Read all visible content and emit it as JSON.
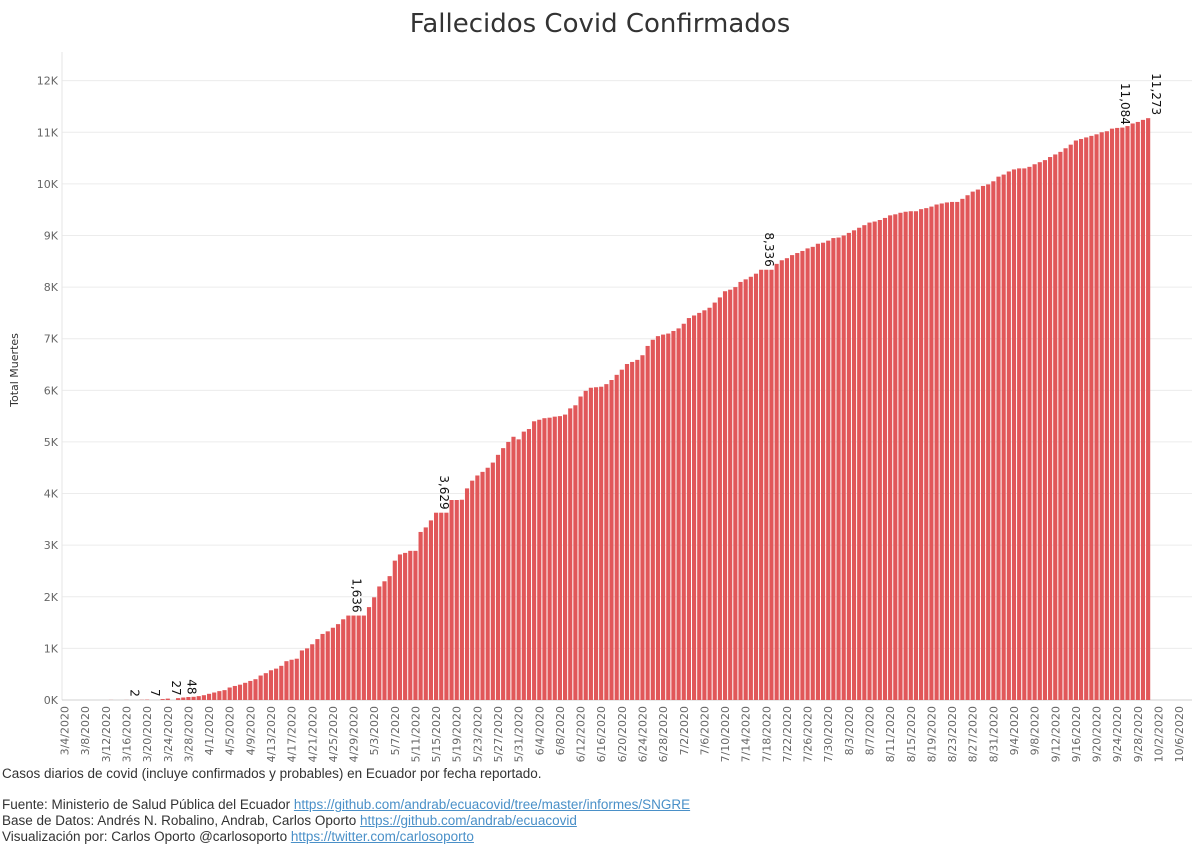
{
  "chart_data": {
    "type": "bar",
    "title": "Fallecidos Covid Confirmados",
    "xlabel": "",
    "ylabel": "Total Muertes",
    "ylim": [
      0,
      12400
    ],
    "y_ticks": [
      0,
      1000,
      2000,
      3000,
      4000,
      5000,
      6000,
      7000,
      8000,
      9000,
      10000,
      11000,
      12000
    ],
    "y_tick_labels": [
      "0K",
      "1K",
      "2K",
      "3K",
      "4K",
      "5K",
      "6K",
      "7K",
      "8K",
      "9K",
      "10K",
      "11K",
      "12K"
    ],
    "x_axis": {
      "type": "date",
      "start": "3/4/2020",
      "end": "10/8/2020",
      "tick_every_days": 4
    },
    "x_tick_labels": [
      "3/4/2020",
      "3/8/2020",
      "3/12/2020",
      "3/16/2020",
      "3/20/2020",
      "3/24/2020",
      "3/28/2020",
      "4/1/2020",
      "4/5/2020",
      "4/9/2020",
      "4/13/2020",
      "4/17/2020",
      "4/21/2020",
      "4/25/2020",
      "4/29/2020",
      "5/3/2020",
      "5/7/2020",
      "5/11/2020",
      "5/15/2020",
      "5/19/2020",
      "5/23/2020",
      "5/27/2020",
      "5/31/2020",
      "6/4/2020",
      "6/8/2020",
      "6/12/2020",
      "6/16/2020",
      "6/20/2020",
      "6/24/2020",
      "6/28/2020",
      "7/2/2020",
      "7/6/2020",
      "7/10/2020",
      "7/14/2020",
      "7/18/2020",
      "7/22/2020",
      "7/26/2020",
      "7/30/2020",
      "8/3/2020",
      "8/7/2020",
      "8/11/2020",
      "8/15/2020",
      "8/19/2020",
      "8/23/2020",
      "8/27/2020",
      "8/31/2020",
      "9/4/2020",
      "9/8/2020",
      "9/12/2020",
      "9/16/2020",
      "9/20/2020",
      "9/24/2020",
      "9/28/2020",
      "10/2/2020",
      "10/6/2020"
    ],
    "bar_color": "#e15759",
    "series": [
      {
        "points": [
          [
            "3/13/2020",
            2
          ],
          [
            "3/16/2020",
            2
          ],
          [
            "3/19/2020",
            4
          ],
          [
            "3/20/2020",
            7
          ],
          [
            "3/23/2020",
            18
          ],
          [
            "3/24/2020",
            27
          ],
          [
            "3/26/2020",
            36
          ],
          [
            "3/27/2020",
            48
          ],
          [
            "3/28/2020",
            58
          ],
          [
            "3/29/2020",
            62
          ],
          [
            "3/30/2020",
            75
          ],
          [
            "3/31/2020",
            93
          ],
          [
            "4/1/2020",
            120
          ],
          [
            "4/2/2020",
            145
          ],
          [
            "4/3/2020",
            172
          ],
          [
            "4/4/2020",
            191
          ],
          [
            "4/5/2020",
            242
          ],
          [
            "4/6/2020",
            272
          ],
          [
            "4/7/2020",
            297
          ],
          [
            "4/8/2020",
            333
          ],
          [
            "4/9/2020",
            369
          ],
          [
            "4/10/2020",
            403
          ],
          [
            "4/11/2020",
            474
          ],
          [
            "4/12/2020",
            520
          ],
          [
            "4/13/2020",
            576
          ],
          [
            "4/14/2020",
            608
          ],
          [
            "4/15/2020",
            662
          ],
          [
            "4/16/2020",
            752
          ],
          [
            "4/17/2020",
            780
          ],
          [
            "4/18/2020",
            800
          ],
          [
            "4/19/2020",
            960
          ],
          [
            "4/20/2020",
            1000
          ],
          [
            "4/21/2020",
            1080
          ],
          [
            "4/22/2020",
            1180
          ],
          [
            "4/23/2020",
            1280
          ],
          [
            "4/24/2020",
            1330
          ],
          [
            "4/25/2020",
            1400
          ],
          [
            "4/26/2020",
            1470
          ],
          [
            "4/27/2020",
            1564
          ],
          [
            "4/28/2020",
            1636
          ],
          [
            "4/29/2020",
            1636
          ],
          [
            "4/30/2020",
            1636
          ],
          [
            "5/1/2020",
            1636
          ],
          [
            "5/2/2020",
            1800
          ],
          [
            "5/3/2020",
            1990
          ],
          [
            "5/4/2020",
            2200
          ],
          [
            "5/5/2020",
            2300
          ],
          [
            "5/6/2020",
            2400
          ],
          [
            "5/7/2020",
            2700
          ],
          [
            "5/8/2020",
            2820
          ],
          [
            "5/9/2020",
            2850
          ],
          [
            "5/10/2020",
            2890
          ],
          [
            "5/11/2020",
            2890
          ],
          [
            "5/12/2020",
            3256
          ],
          [
            "5/13/2020",
            3344
          ],
          [
            "5/14/2020",
            3480
          ],
          [
            "5/15/2020",
            3629
          ],
          [
            "5/16/2020",
            3629
          ],
          [
            "5/17/2020",
            3629
          ],
          [
            "5/18/2020",
            3875
          ],
          [
            "5/19/2020",
            3875
          ],
          [
            "5/20/2020",
            3880
          ],
          [
            "5/21/2020",
            4100
          ],
          [
            "5/22/2020",
            4250
          ],
          [
            "5/23/2020",
            4350
          ],
          [
            "5/24/2020",
            4420
          ],
          [
            "5/25/2020",
            4500
          ],
          [
            "5/26/2020",
            4600
          ],
          [
            "5/27/2020",
            4750
          ],
          [
            "5/28/2020",
            4880
          ],
          [
            "5/29/2020",
            5000
          ],
          [
            "5/30/2020",
            5100
          ],
          [
            "5/31/2020",
            5050
          ],
          [
            "6/1/2020",
            5200
          ],
          [
            "6/2/2020",
            5250
          ],
          [
            "6/3/2020",
            5400
          ],
          [
            "6/4/2020",
            5430
          ],
          [
            "6/5/2020",
            5460
          ],
          [
            "6/6/2020",
            5470
          ],
          [
            "6/7/2020",
            5490
          ],
          [
            "6/8/2020",
            5500
          ],
          [
            "6/9/2020",
            5530
          ],
          [
            "6/10/2020",
            5650
          ],
          [
            "6/11/2020",
            5710
          ],
          [
            "6/12/2020",
            5880
          ],
          [
            "6/13/2020",
            5990
          ],
          [
            "6/14/2020",
            6050
          ],
          [
            "6/15/2020",
            6060
          ],
          [
            "6/16/2020",
            6070
          ],
          [
            "6/17/2020",
            6120
          ],
          [
            "6/18/2020",
            6200
          ],
          [
            "6/19/2020",
            6300
          ],
          [
            "6/20/2020",
            6400
          ],
          [
            "6/21/2020",
            6510
          ],
          [
            "6/22/2020",
            6550
          ],
          [
            "6/23/2020",
            6590
          ],
          [
            "6/24/2020",
            6680
          ],
          [
            "6/25/2020",
            6860
          ],
          [
            "6/26/2020",
            6980
          ],
          [
            "6/27/2020",
            7050
          ],
          [
            "6/28/2020",
            7080
          ],
          [
            "6/29/2020",
            7100
          ],
          [
            "6/30/2020",
            7150
          ],
          [
            "7/1/2020",
            7200
          ],
          [
            "7/2/2020",
            7290
          ],
          [
            "7/3/2020",
            7400
          ],
          [
            "7/4/2020",
            7450
          ],
          [
            "7/5/2020",
            7500
          ],
          [
            "7/6/2020",
            7550
          ],
          [
            "7/7/2020",
            7600
          ],
          [
            "7/8/2020",
            7700
          ],
          [
            "7/9/2020",
            7800
          ],
          [
            "7/10/2020",
            7920
          ],
          [
            "7/11/2020",
            7950
          ],
          [
            "7/12/2020",
            8000
          ],
          [
            "7/13/2020",
            8100
          ],
          [
            "7/14/2020",
            8150
          ],
          [
            "7/15/2020",
            8200
          ],
          [
            "7/16/2020",
            8260
          ],
          [
            "7/17/2020",
            8336
          ],
          [
            "7/18/2020",
            8336
          ],
          [
            "7/19/2020",
            8336
          ],
          [
            "7/20/2020",
            8450
          ],
          [
            "7/21/2020",
            8520
          ],
          [
            "7/22/2020",
            8560
          ],
          [
            "7/23/2020",
            8620
          ],
          [
            "7/24/2020",
            8660
          ],
          [
            "7/25/2020",
            8700
          ],
          [
            "7/26/2020",
            8750
          ],
          [
            "7/27/2020",
            8780
          ],
          [
            "7/28/2020",
            8840
          ],
          [
            "7/29/2020",
            8860
          ],
          [
            "7/30/2020",
            8900
          ],
          [
            "7/31/2020",
            8950
          ],
          [
            "8/1/2020",
            8960
          ],
          [
            "8/2/2020",
            9000
          ],
          [
            "8/3/2020",
            9050
          ],
          [
            "8/4/2020",
            9100
          ],
          [
            "8/5/2020",
            9150
          ],
          [
            "8/6/2020",
            9200
          ],
          [
            "8/7/2020",
            9250
          ],
          [
            "8/8/2020",
            9270
          ],
          [
            "8/9/2020",
            9300
          ],
          [
            "8/10/2020",
            9340
          ],
          [
            "8/11/2020",
            9390
          ],
          [
            "8/12/2020",
            9410
          ],
          [
            "8/13/2020",
            9440
          ],
          [
            "8/14/2020",
            9460
          ],
          [
            "8/15/2020",
            9470
          ],
          [
            "8/16/2020",
            9470
          ],
          [
            "8/17/2020",
            9510
          ],
          [
            "8/18/2020",
            9530
          ],
          [
            "8/19/2020",
            9560
          ],
          [
            "8/20/2020",
            9600
          ],
          [
            "8/21/2020",
            9620
          ],
          [
            "8/22/2020",
            9640
          ],
          [
            "8/23/2020",
            9650
          ],
          [
            "8/24/2020",
            9650
          ],
          [
            "8/25/2020",
            9710
          ],
          [
            "8/26/2020",
            9780
          ],
          [
            "8/27/2020",
            9850
          ],
          [
            "8/28/2020",
            9890
          ],
          [
            "8/29/2020",
            9960
          ],
          [
            "8/30/2020",
            9990
          ],
          [
            "8/31/2020",
            10050
          ],
          [
            "9/1/2020",
            10140
          ],
          [
            "9/2/2020",
            10180
          ],
          [
            "9/3/2020",
            10240
          ],
          [
            "9/4/2020",
            10280
          ],
          [
            "9/5/2020",
            10300
          ],
          [
            "9/6/2020",
            10300
          ],
          [
            "9/7/2020",
            10330
          ],
          [
            "9/8/2020",
            10380
          ],
          [
            "9/9/2020",
            10420
          ],
          [
            "9/10/2020",
            10460
          ],
          [
            "9/11/2020",
            10520
          ],
          [
            "9/12/2020",
            10570
          ],
          [
            "9/13/2020",
            10620
          ],
          [
            "9/14/2020",
            10690
          ],
          [
            "9/15/2020",
            10760
          ],
          [
            "9/16/2020",
            10840
          ],
          [
            "9/17/2020",
            10870
          ],
          [
            "9/18/2020",
            10900
          ],
          [
            "9/19/2020",
            10930
          ],
          [
            "9/20/2020",
            10960
          ],
          [
            "9/21/2020",
            11000
          ],
          [
            "9/22/2020",
            11020
          ],
          [
            "9/23/2020",
            11070
          ],
          [
            "9/24/2020",
            11084
          ],
          [
            "9/25/2020",
            11090
          ],
          [
            "9/26/2020",
            11120
          ],
          [
            "9/27/2020",
            11170
          ],
          [
            "9/28/2020",
            11200
          ],
          [
            "9/29/2020",
            11240
          ],
          [
            "9/30/2020",
            11273
          ]
        ]
      }
    ],
    "data_labels": [
      {
        "date": "3/16/2020",
        "value": 2,
        "text": "2"
      },
      {
        "date": "3/20/2020",
        "value": 7,
        "text": "7"
      },
      {
        "date": "3/24/2020",
        "value": 27,
        "text": "27"
      },
      {
        "date": "3/27/2020",
        "value": 48,
        "text": "48"
      },
      {
        "date": "4/28/2020",
        "value": 1636,
        "text": "1,636"
      },
      {
        "date": "5/15/2020",
        "value": 3629,
        "text": "3,629"
      },
      {
        "date": "7/17/2020",
        "value": 8336,
        "text": "8,336"
      },
      {
        "date": "9/24/2020",
        "value": 11084,
        "text": "11,084"
      },
      {
        "date": "9/30/2020",
        "value": 11273,
        "text": "11,273"
      }
    ],
    "grid": true,
    "legend": "none"
  },
  "footer": {
    "description": "Casos diarios de covid (incluye confirmados y probables) en Ecuador por fecha reportado.",
    "source_prefix": "Fuente: Ministerio de Salud Pública del Ecuador ",
    "source_link": "https://github.com/andrab/ecuacovid/tree/master/informes/SNGRE",
    "database_prefix": "Base de Datos: Andrés N. Robalino, Andrab, Carlos Oporto ",
    "database_link": "https://github.com/andrab/ecuacovid",
    "viz_prefix": "Visualización por: Carlos Oporto @carlosoporto ",
    "viz_link": "https://twitter.com/carlosoporto"
  }
}
